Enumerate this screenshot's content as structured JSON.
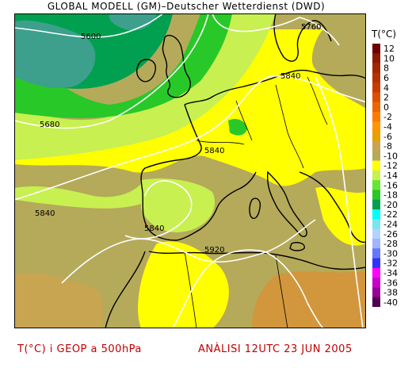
{
  "header": {
    "title": "GLOBAL MODELL (GM)–Deutscher Wetterdienst (DWD)"
  },
  "legend": {
    "title": "T(°C)",
    "levels": [
      {
        "label": "12",
        "color": "#6e0000"
      },
      {
        "label": "10",
        "color": "#8c1a00"
      },
      {
        "label": "8",
        "color": "#a02800"
      },
      {
        "label": "6",
        "color": "#b43200"
      },
      {
        "label": "4",
        "color": "#c83c00"
      },
      {
        "label": "2",
        "color": "#dc5000"
      },
      {
        "label": "0",
        "color": "#f06400"
      },
      {
        "label": "-2",
        "color": "#ff7800"
      },
      {
        "label": "-4",
        "color": "#ff9600"
      },
      {
        "label": "-6",
        "color": "#e6a000"
      },
      {
        "label": "-8",
        "color": "#c8a550"
      },
      {
        "label": "-10",
        "color": "#b4aa5a"
      },
      {
        "label": "-12",
        "color": "#ffff00"
      },
      {
        "label": "-14",
        "color": "#c8f050"
      },
      {
        "label": "-16",
        "color": "#64e632"
      },
      {
        "label": "-18",
        "color": "#28c828"
      },
      {
        "label": "-20",
        "color": "#00a050"
      },
      {
        "label": "-22",
        "color": "#00ffff"
      },
      {
        "label": "-24",
        "color": "#78e6f0"
      },
      {
        "label": "-26",
        "color": "#b4d2ff"
      },
      {
        "label": "-28",
        "color": "#a0b4ff"
      },
      {
        "label": "-30",
        "color": "#6478ff"
      },
      {
        "label": "-32",
        "color": "#3232ff"
      },
      {
        "label": "-34",
        "color": "#ff00ff"
      },
      {
        "label": "-36",
        "color": "#c800c8"
      },
      {
        "label": "-38",
        "color": "#960096"
      },
      {
        "label": "-40",
        "color": "#500050"
      }
    ]
  },
  "contours": [
    {
      "label": "5600"
    },
    {
      "label": "5680"
    },
    {
      "label": "5760"
    },
    {
      "label": "5840"
    },
    {
      "label": "5840"
    },
    {
      "label": "5840"
    },
    {
      "label": "5840"
    },
    {
      "label": "5920"
    }
  ],
  "footer": {
    "left": "T(°C) i GEOP a 500hPa",
    "right": "ANÀLISI 12UTC 23 JUN 2005"
  },
  "colors": {
    "teal": "#3ca08c",
    "dark_green": "#00a050",
    "green": "#28c828",
    "light_green": "#c8f050",
    "yellow": "#ffff00",
    "khaki": "#b4aa5a",
    "tan": "#c8a550",
    "orange_brown": "#d2963c",
    "footer_text": "#c00000"
  }
}
